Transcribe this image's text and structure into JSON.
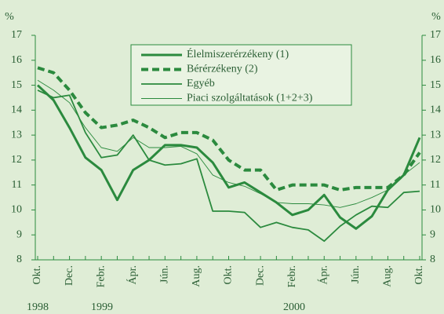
{
  "chart_data": {
    "type": "line",
    "categories": [
      "Okt.",
      null,
      "Dec.",
      null,
      "Febr.",
      null,
      "Ápr.",
      null,
      "Jún.",
      null,
      "Aug.",
      null,
      "Okt.",
      null,
      "Dec.",
      null,
      "Febr.",
      null,
      "Ápr.",
      null,
      "Jún.",
      null,
      "Aug.",
      null,
      "Okt."
    ],
    "annotations": [
      "1998",
      "1999",
      "2000"
    ],
    "ylabel": "%",
    "y2label": "%",
    "ylim": [
      8,
      17
    ],
    "yticks": [
      8,
      9,
      10,
      11,
      12,
      13,
      14,
      15,
      16,
      17
    ],
    "y2lim": [
      8,
      17
    ],
    "y2ticks": [
      8,
      9,
      10,
      11,
      12,
      13,
      14,
      15,
      16,
      17
    ],
    "legend": "top",
    "series": [
      {
        "name": "Élelmiszerérzékeny (1)",
        "color": "#2b8a3e",
        "dash": false,
        "values": [
          15.0,
          14.4,
          13.3,
          12.1,
          11.6,
          10.4,
          11.6,
          12.0,
          12.6,
          12.6,
          12.5,
          11.9,
          10.9,
          11.1,
          10.7,
          10.3,
          9.8,
          10.0,
          10.6,
          9.7,
          9.25,
          9.75,
          10.8,
          11.4,
          12.9
        ]
      },
      {
        "name": "Bérérzékeny (2)",
        "color": "#2b8a3e",
        "dash": true,
        "values": [
          15.7,
          15.5,
          14.8,
          13.9,
          13.3,
          13.4,
          13.6,
          13.3,
          12.9,
          13.1,
          13.1,
          12.8,
          12.0,
          11.6,
          11.6,
          10.8,
          11.0,
          11.0,
          11.0,
          10.8,
          10.9,
          10.9,
          10.9,
          11.4,
          12.3
        ]
      },
      {
        "name": "Egyéb",
        "color": "#2b8a3e",
        "dash": false,
        "values": [
          14.8,
          14.5,
          14.6,
          13.1,
          12.1,
          12.2,
          13.0,
          12.0,
          11.8,
          11.85,
          12.05,
          9.95,
          9.95,
          9.9,
          9.3,
          9.5,
          9.3,
          9.2,
          8.75,
          9.35,
          9.8,
          10.15,
          10.1,
          10.7,
          10.75
        ]
      },
      {
        "name": "Piaci szolgáltatások (1+2+3)",
        "color": "#2b8a3e",
        "dash": false,
        "values": [
          15.2,
          14.8,
          14.3,
          13.3,
          12.5,
          12.35,
          12.9,
          12.5,
          12.5,
          12.55,
          12.25,
          11.4,
          11.1,
          10.95,
          10.65,
          10.3,
          10.25,
          10.25,
          10.2,
          10.1,
          10.25,
          10.5,
          10.8,
          11.4,
          11.9
        ]
      }
    ]
  }
}
